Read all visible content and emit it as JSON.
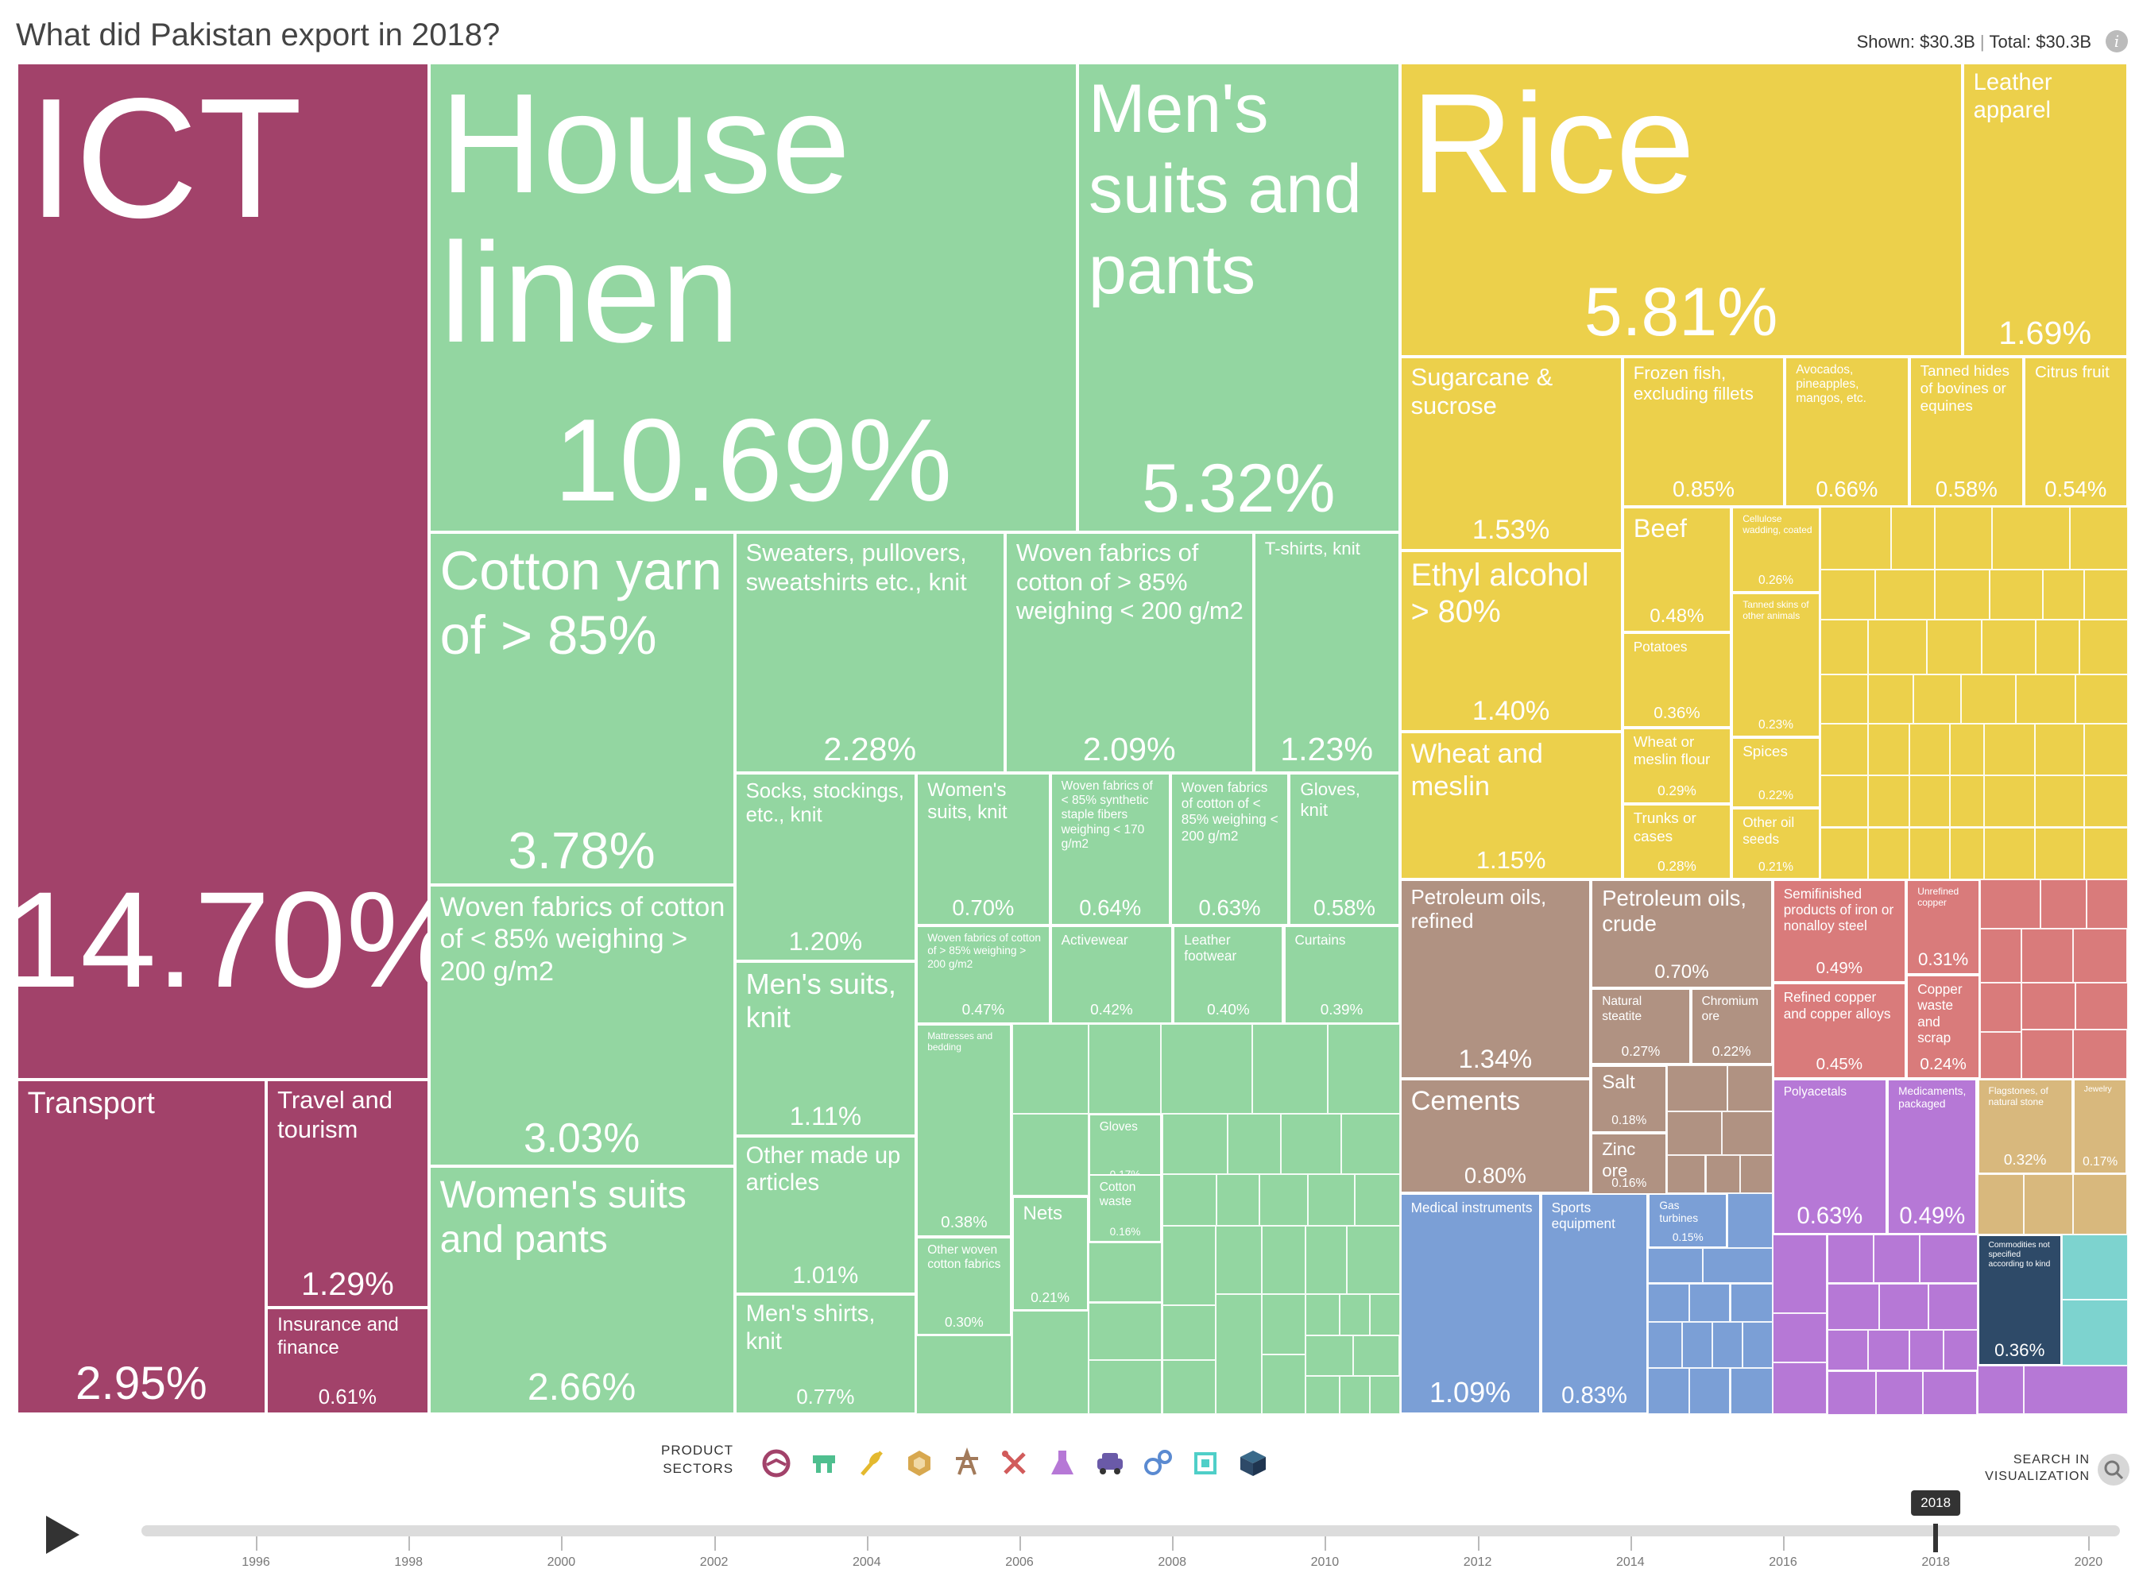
{
  "title": "What did Pakistan export in 2018?",
  "totals": {
    "shown_label": "Shown:",
    "shown": "$30.3B",
    "total_label": "Total:",
    "total": "$30.3B"
  },
  "controls": {
    "sectors_label_1": "PRODUCT",
    "sectors_label_2": "SECTORS",
    "sector_icons": [
      "services-icon",
      "textiles-icon",
      "agriculture-icon",
      "stone-icon",
      "minerals-icon",
      "metals-icon",
      "chemicals-icon",
      "vehicles-icon",
      "machinery-icon",
      "electronics-icon",
      "other-icon"
    ],
    "search_label_1": "SEARCH IN",
    "search_label_2": "VISUALIZATION",
    "timeline_years": [
      "1996",
      "1998",
      "2000",
      "2002",
      "2004",
      "2006",
      "2008",
      "2010",
      "2012",
      "2014",
      "2016",
      "2018",
      "2020"
    ],
    "selected_year": "2018"
  },
  "colors": {
    "services": "#a2426a",
    "textiles": "#93d6a1",
    "agriculture": "#ecd04b",
    "minerals": "#b09282",
    "metals": "#d97b7b",
    "chemicals": "#b678d6",
    "machinery": "#7b9fd6",
    "electronics": "#7dd3cf",
    "other": "#2e4a68",
    "stone": "#d8b87d"
  },
  "chart_data": {
    "type": "treemap",
    "title": "What did Pakistan export in 2018?",
    "total": "$30.3B",
    "items": [
      {
        "name": "ICT",
        "share": "14.70%",
        "sector": "services"
      },
      {
        "name": "Transport",
        "share": "2.95%",
        "sector": "services"
      },
      {
        "name": "Travel and tourism",
        "share": "1.29%",
        "sector": "services"
      },
      {
        "name": "Insurance and finance",
        "share": "0.61%",
        "sector": "services"
      },
      {
        "name": "House linen",
        "share": "10.69%",
        "sector": "textiles"
      },
      {
        "name": "Men's suits and pants",
        "share": "5.32%",
        "sector": "textiles"
      },
      {
        "name": "Cotton yarn of > 85%",
        "share": "3.78%",
        "sector": "textiles"
      },
      {
        "name": "Woven fabrics of cotton of < 85% weighing > 200 g/m2",
        "share": "3.03%",
        "sector": "textiles"
      },
      {
        "name": "Women's suits and pants",
        "share": "2.66%",
        "sector": "textiles"
      },
      {
        "name": "Sweaters, pullovers, sweatshirts etc., knit",
        "share": "2.28%",
        "sector": "textiles"
      },
      {
        "name": "Woven fabrics of cotton of > 85% weighing < 200 g/m2",
        "share": "2.09%",
        "sector": "textiles"
      },
      {
        "name": "T-shirts, knit",
        "share": "1.23%",
        "sector": "textiles"
      },
      {
        "name": "Socks, stockings, etc., knit",
        "share": "1.20%",
        "sector": "textiles"
      },
      {
        "name": "Men's suits, knit",
        "share": "1.11%",
        "sector": "textiles"
      },
      {
        "name": "Other made up articles",
        "share": "1.01%",
        "sector": "textiles"
      },
      {
        "name": "Men's shirts, knit",
        "share": "0.77%",
        "sector": "textiles"
      },
      {
        "name": "Women's suits, knit",
        "share": "0.70%",
        "sector": "textiles"
      },
      {
        "name": "Woven fabrics of < 85% synthetic staple fibers weighing < 170 g/m2",
        "share": "0.64%",
        "sector": "textiles"
      },
      {
        "name": "Woven fabrics of cotton of < 85% weighing < 200 g/m2",
        "share": "0.63%",
        "sector": "textiles"
      },
      {
        "name": "Gloves, knit",
        "share": "0.58%",
        "sector": "textiles"
      },
      {
        "name": "Woven fabrics of cotton of > 85% weighing > 200 g/m2",
        "share": "0.47%",
        "sector": "textiles"
      },
      {
        "name": "Activewear",
        "share": "0.42%",
        "sector": "textiles"
      },
      {
        "name": "Leather footwear",
        "share": "0.40%",
        "sector": "textiles"
      },
      {
        "name": "Curtains",
        "share": "0.39%",
        "sector": "textiles"
      },
      {
        "name": "Mattresses and bedding",
        "share": "0.38%",
        "sector": "textiles"
      },
      {
        "name": "Other woven cotton fabrics",
        "share": "0.30%",
        "sector": "textiles"
      },
      {
        "name": "Nets",
        "share": "0.21%",
        "sector": "textiles"
      },
      {
        "name": "Gloves",
        "share": "0.17%",
        "sector": "textiles"
      },
      {
        "name": "Cotton waste",
        "share": "0.16%",
        "sector": "textiles"
      },
      {
        "name": "Rice",
        "share": "5.81%",
        "sector": "agriculture"
      },
      {
        "name": "Leather apparel",
        "share": "1.69%",
        "sector": "agriculture"
      },
      {
        "name": "Sugarcane & sucrose",
        "share": "1.53%",
        "sector": "agriculture"
      },
      {
        "name": "Ethyl alcohol > 80%",
        "share": "1.40%",
        "sector": "agriculture"
      },
      {
        "name": "Wheat and meslin",
        "share": "1.15%",
        "sector": "agriculture"
      },
      {
        "name": "Frozen fish, excluding fillets",
        "share": "0.85%",
        "sector": "agriculture"
      },
      {
        "name": "Avocados, pineapples, mangos, etc.",
        "share": "0.66%",
        "sector": "agriculture"
      },
      {
        "name": "Tanned hides of bovines or equines",
        "share": "0.58%",
        "sector": "agriculture"
      },
      {
        "name": "Citrus fruit",
        "share": "0.54%",
        "sector": "agriculture"
      },
      {
        "name": "Beef",
        "share": "0.48%",
        "sector": "agriculture"
      },
      {
        "name": "Potatoes",
        "share": "0.36%",
        "sector": "agriculture"
      },
      {
        "name": "Wheat or meslin flour",
        "share": "0.29%",
        "sector": "agriculture"
      },
      {
        "name": "Trunks or cases",
        "share": "0.28%",
        "sector": "agriculture"
      },
      {
        "name": "Cellulose wadding, coated",
        "share": "0.26%",
        "sector": "agriculture"
      },
      {
        "name": "Tanned skins of other animals",
        "share": "0.23%",
        "sector": "agriculture"
      },
      {
        "name": "Spices",
        "share": "0.22%",
        "sector": "agriculture"
      },
      {
        "name": "Other oil seeds",
        "share": "0.21%",
        "sector": "agriculture"
      },
      {
        "name": "Petroleum oils, refined",
        "share": "1.34%",
        "sector": "minerals"
      },
      {
        "name": "Cements",
        "share": "0.80%",
        "sector": "minerals"
      },
      {
        "name": "Petroleum oils, crude",
        "share": "0.70%",
        "sector": "minerals"
      },
      {
        "name": "Natural steatite",
        "share": "0.27%",
        "sector": "minerals"
      },
      {
        "name": "Chromium ore",
        "share": "0.22%",
        "sector": "minerals"
      },
      {
        "name": "Salt",
        "share": "0.18%",
        "sector": "minerals"
      },
      {
        "name": "Zinc ore",
        "share": "0.16%",
        "sector": "minerals"
      },
      {
        "name": "Semifinished products of iron or nonalloy steel",
        "share": "0.49%",
        "sector": "metals"
      },
      {
        "name": "Refined copper and copper alloys",
        "share": "0.45%",
        "sector": "metals"
      },
      {
        "name": "Unrefined copper",
        "share": "0.31%",
        "sector": "metals"
      },
      {
        "name": "Copper waste and scrap",
        "share": "0.24%",
        "sector": "metals"
      },
      {
        "name": "Polyacetals",
        "share": "0.63%",
        "sector": "chemicals"
      },
      {
        "name": "Medicaments, packaged",
        "share": "0.49%",
        "sector": "chemicals"
      },
      {
        "name": "Medical instruments",
        "share": "1.09%",
        "sector": "machinery"
      },
      {
        "name": "Sports equipment",
        "share": "0.83%",
        "sector": "machinery"
      },
      {
        "name": "Gas turbines",
        "share": "0.15%",
        "sector": "machinery"
      },
      {
        "name": "Flagstones, of natural stone",
        "share": "0.32%",
        "sector": "stone"
      },
      {
        "name": "Jewelry",
        "share": "0.17%",
        "sector": "stone"
      },
      {
        "name": "Commodities not specified according to kind",
        "share": "0.36%",
        "sector": "other"
      }
    ]
  }
}
